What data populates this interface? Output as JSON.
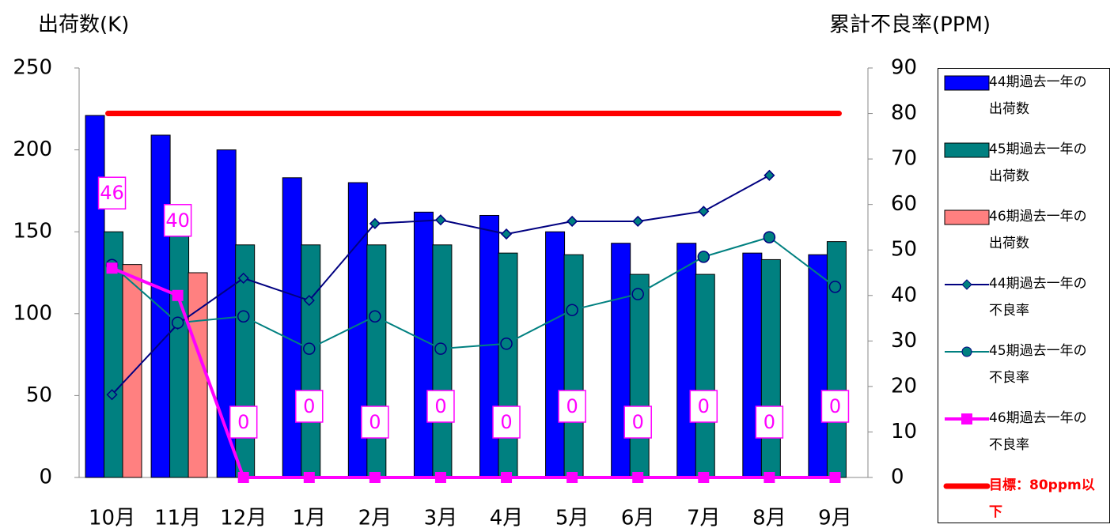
{
  "chart_data": {
    "type": "bar",
    "ylabel": "出荷数(K)",
    "y2label": "累計不良率(PPM)",
    "categories": [
      "10月",
      "11月",
      "12月",
      "1月",
      "2月",
      "3月",
      "4月",
      "5月",
      "6月",
      "7月",
      "8月",
      "9月"
    ],
    "ylim": [
      0,
      250
    ],
    "yticks": [
      0,
      50,
      100,
      150,
      200,
      250
    ],
    "y2lim": [
      0,
      90
    ],
    "y2ticks": [
      0,
      10,
      20,
      30,
      40,
      50,
      60,
      70,
      80,
      90
    ],
    "series": [
      {
        "name": "44期過去一年の出荷数",
        "type": "bar",
        "color": "#0000ff",
        "values": [
          221,
          209,
          200,
          183,
          180,
          162,
          160,
          150,
          143,
          143,
          137,
          136
        ]
      },
      {
        "name": "45期過去一年の出荷数",
        "type": "bar",
        "color": "#008080",
        "values": [
          150,
          148,
          142,
          142,
          142,
          142,
          137,
          136,
          124,
          124,
          133,
          144
        ]
      },
      {
        "name": "46期過去一年の出荷数",
        "type": "bar",
        "color": "#ff8080",
        "values": [
          130,
          125,
          null,
          null,
          null,
          null,
          null,
          null,
          null,
          null,
          null,
          null
        ]
      },
      {
        "name": "44期過去一年の不良率",
        "type": "line",
        "axis": "y2",
        "marker": "diamond",
        "color": "#000080",
        "values": [
          18.2,
          33.7,
          43.8,
          38.9,
          55.8,
          56.6,
          53.5,
          56.3,
          56.3,
          58.5,
          66.4,
          null
        ]
      },
      {
        "name": "45期過去一年の不良率",
        "type": "line",
        "axis": "y2",
        "marker": "circle",
        "color": "#008080",
        "values": [
          46.7,
          34,
          35.4,
          28.3,
          35.4,
          28.3,
          29.4,
          36.8,
          40.3,
          48.5,
          52.8,
          41.9
        ]
      },
      {
        "name": "46期過去一年の不良率",
        "type": "line",
        "axis": "y2",
        "marker": "square",
        "color": "#ff00ff",
        "data_labels": true,
        "values": [
          46,
          40,
          0,
          0,
          0,
          0,
          0,
          0,
          0,
          0,
          0,
          0
        ]
      }
    ],
    "target": {
      "name": "目標：80ppm以下",
      "value": 80,
      "color": "#ff0000"
    }
  }
}
